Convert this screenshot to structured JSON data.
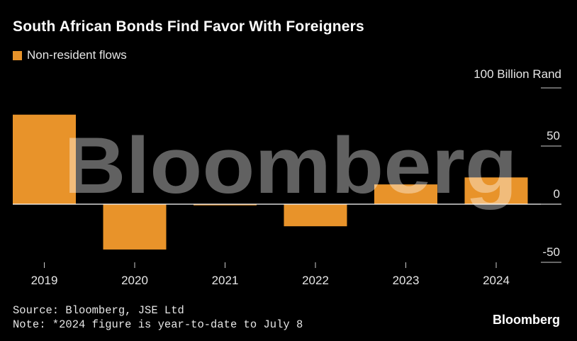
{
  "title": "South African Bonds Find Favor With Foreigners",
  "legend": {
    "label": "Non-resident flows",
    "color": "#e8932a"
  },
  "unit_label": "100 Billion Rand",
  "watermark": "Bloomberg",
  "source": "Source: Bloomberg, JSE Ltd",
  "note": "Note: *2024 figure is year-to-date to July 8",
  "brand": "Bloomberg",
  "chart_data": {
    "type": "bar",
    "categories": [
      "2019",
      "2020",
      "2021",
      "2022",
      "2023",
      "2024"
    ],
    "values": [
      77,
      -39,
      -1,
      -19,
      17,
      23
    ],
    "ylim": [
      -50,
      100
    ],
    "yticks": [
      -50,
      0,
      50,
      100
    ],
    "ytick_labels": [
      "-50",
      "0",
      "50",
      "100 Billion Rand"
    ],
    "grid": false,
    "legend_position": "top-left"
  }
}
